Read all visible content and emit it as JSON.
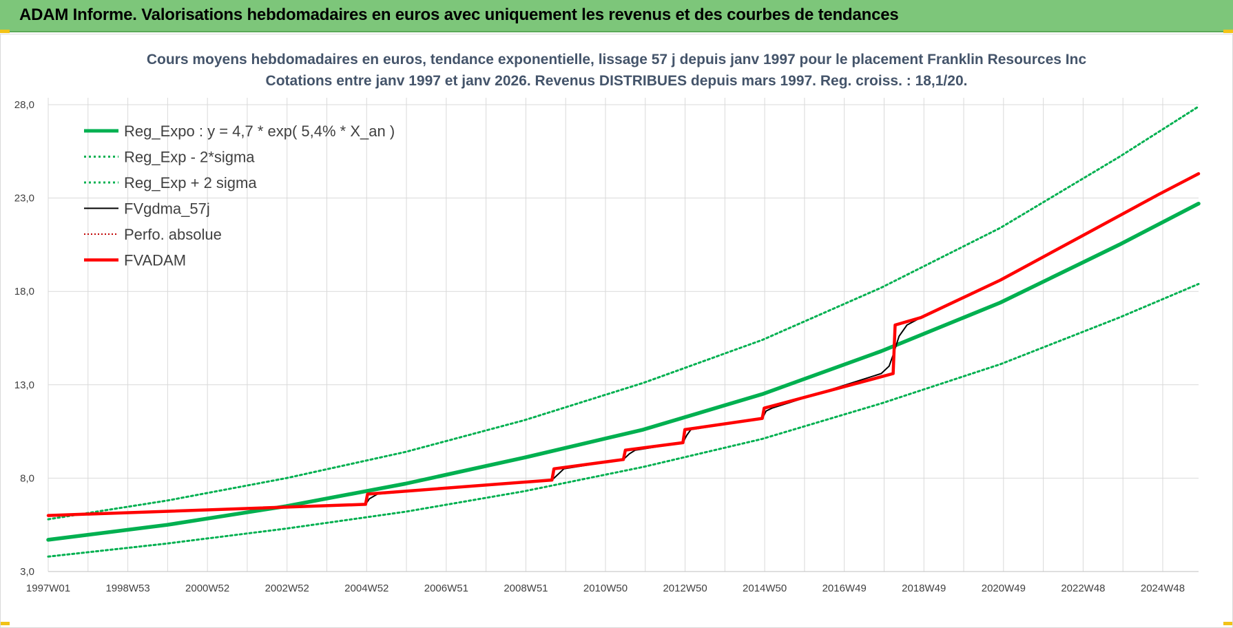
{
  "header": {
    "title": "ADAM Informe. Valorisations hebdomadaires en euros avec uniquement les revenus et des courbes de tendances"
  },
  "colors": {
    "header_bg": "#7dc67a",
    "trend": "#00b050",
    "portfolio": "#ff0000",
    "smoothed": "#000000",
    "title_text": "#44546a",
    "grid": "#d9d9d9"
  },
  "chart_data": {
    "type": "line",
    "title": "Cours moyens hebdomadaires en euros, tendance exponentielle, lissage 57 j depuis janv 1997 pour le placement Franklin Resources Inc",
    "subtitle": "Cotations entre janv 1997 et janv 2026. Revenus DISTRIBUES depuis mars 1997. Reg. croiss. : 18,1/20.",
    "xlabel": "",
    "ylabel": "",
    "ylim": [
      3,
      28
    ],
    "yticks": [
      "3,0",
      "8,0",
      "13,0",
      "18,0",
      "23,0",
      "28,0"
    ],
    "xticks": [
      "1997W01",
      "1998W53",
      "2000W52",
      "2002W52",
      "2004W52",
      "2006W51",
      "2008W51",
      "2010W50",
      "2012W50",
      "2014W50",
      "2016W49",
      "2018W49",
      "2020W49",
      "2022W48",
      "2024W48"
    ],
    "xlim_years": [
      1997.0,
      2026.0
    ],
    "grid": true,
    "legend_position": "top-left",
    "series": [
      {
        "name": "Reg_Expo : y = 4,7 * exp( 5,4% *  X_an )",
        "style": "solid-thick",
        "color": "#00b050",
        "points": [
          [
            1997.0,
            4.7
          ],
          [
            2000.0,
            5.5
          ],
          [
            2003.0,
            6.5
          ],
          [
            2006.0,
            7.7
          ],
          [
            2009.0,
            9.1
          ],
          [
            2012.0,
            10.6
          ],
          [
            2015.0,
            12.5
          ],
          [
            2018.0,
            14.8
          ],
          [
            2021.0,
            17.4
          ],
          [
            2024.0,
            20.5
          ],
          [
            2026.0,
            22.7
          ]
        ]
      },
      {
        "name": "Reg_Exp - 2*sigma",
        "style": "dotted",
        "color": "#00b050",
        "points": [
          [
            1997.0,
            3.8
          ],
          [
            2000.0,
            4.5
          ],
          [
            2003.0,
            5.3
          ],
          [
            2006.0,
            6.2
          ],
          [
            2009.0,
            7.3
          ],
          [
            2012.0,
            8.6
          ],
          [
            2015.0,
            10.1
          ],
          [
            2018.0,
            12.0
          ],
          [
            2021.0,
            14.1
          ],
          [
            2024.0,
            16.6
          ],
          [
            2026.0,
            18.4
          ]
        ]
      },
      {
        "name": "Reg_Exp + 2 sigma",
        "style": "dotted",
        "color": "#00b050",
        "points": [
          [
            1997.0,
            5.8
          ],
          [
            2000.0,
            6.8
          ],
          [
            2003.0,
            8.0
          ],
          [
            2006.0,
            9.4
          ],
          [
            2009.0,
            11.1
          ],
          [
            2012.0,
            13.1
          ],
          [
            2015.0,
            15.4
          ],
          [
            2018.0,
            18.2
          ],
          [
            2021.0,
            21.4
          ],
          [
            2024.0,
            25.2
          ],
          [
            2026.0,
            27.9
          ]
        ]
      },
      {
        "name": "FVgdma_57j",
        "style": "solid",
        "color": "#000000",
        "points": [
          [
            1997.0,
            6.0
          ],
          [
            2005.0,
            6.6
          ],
          [
            2005.1,
            6.9
          ],
          [
            2005.3,
            7.15
          ],
          [
            2009.7,
            7.9
          ],
          [
            2009.85,
            8.2
          ],
          [
            2010.0,
            8.5
          ],
          [
            2011.5,
            9.0
          ],
          [
            2011.65,
            9.3
          ],
          [
            2011.8,
            9.5
          ],
          [
            2013.0,
            9.9
          ],
          [
            2013.1,
            10.3
          ],
          [
            2013.2,
            10.6
          ],
          [
            2015.0,
            11.2
          ],
          [
            2015.1,
            11.6
          ],
          [
            2015.25,
            11.75
          ],
          [
            2018.0,
            13.6
          ],
          [
            2018.2,
            14.0
          ],
          [
            2018.3,
            14.6
          ],
          [
            2018.45,
            15.6
          ],
          [
            2018.65,
            16.2
          ],
          [
            2019.0,
            16.6
          ],
          [
            2021.0,
            18.6
          ],
          [
            2023.0,
            20.9
          ],
          [
            2025.0,
            23.2
          ],
          [
            2026.0,
            24.3
          ]
        ]
      },
      {
        "name": "Perfo. absolue",
        "style": "dotted",
        "color": "#c00000",
        "points": [
          [
            1997.0,
            6.0
          ],
          [
            2005.0,
            6.6
          ],
          [
            2005.05,
            7.15
          ],
          [
            2009.7,
            7.9
          ],
          [
            2009.75,
            8.5
          ],
          [
            2011.5,
            9.0
          ],
          [
            2011.55,
            9.5
          ],
          [
            2013.0,
            9.9
          ],
          [
            2013.05,
            10.6
          ],
          [
            2015.0,
            11.2
          ],
          [
            2015.05,
            11.75
          ],
          [
            2018.3,
            13.6
          ],
          [
            2018.35,
            16.2
          ],
          [
            2019.0,
            16.6
          ],
          [
            2021.0,
            18.6
          ],
          [
            2023.0,
            20.9
          ],
          [
            2025.0,
            23.2
          ],
          [
            2026.0,
            24.3
          ]
        ]
      },
      {
        "name": "FVADAM",
        "style": "solid-thick",
        "color": "#ff0000",
        "points": [
          [
            1997.0,
            6.0
          ],
          [
            2005.0,
            6.6
          ],
          [
            2005.05,
            7.15
          ],
          [
            2009.7,
            7.9
          ],
          [
            2009.75,
            8.5
          ],
          [
            2011.5,
            9.0
          ],
          [
            2011.55,
            9.5
          ],
          [
            2013.0,
            9.9
          ],
          [
            2013.05,
            10.6
          ],
          [
            2015.0,
            11.2
          ],
          [
            2015.05,
            11.75
          ],
          [
            2018.3,
            13.6
          ],
          [
            2018.35,
            16.2
          ],
          [
            2019.0,
            16.6
          ],
          [
            2021.0,
            18.6
          ],
          [
            2023.0,
            20.9
          ],
          [
            2025.0,
            23.2
          ],
          [
            2026.0,
            24.3
          ]
        ]
      }
    ]
  }
}
